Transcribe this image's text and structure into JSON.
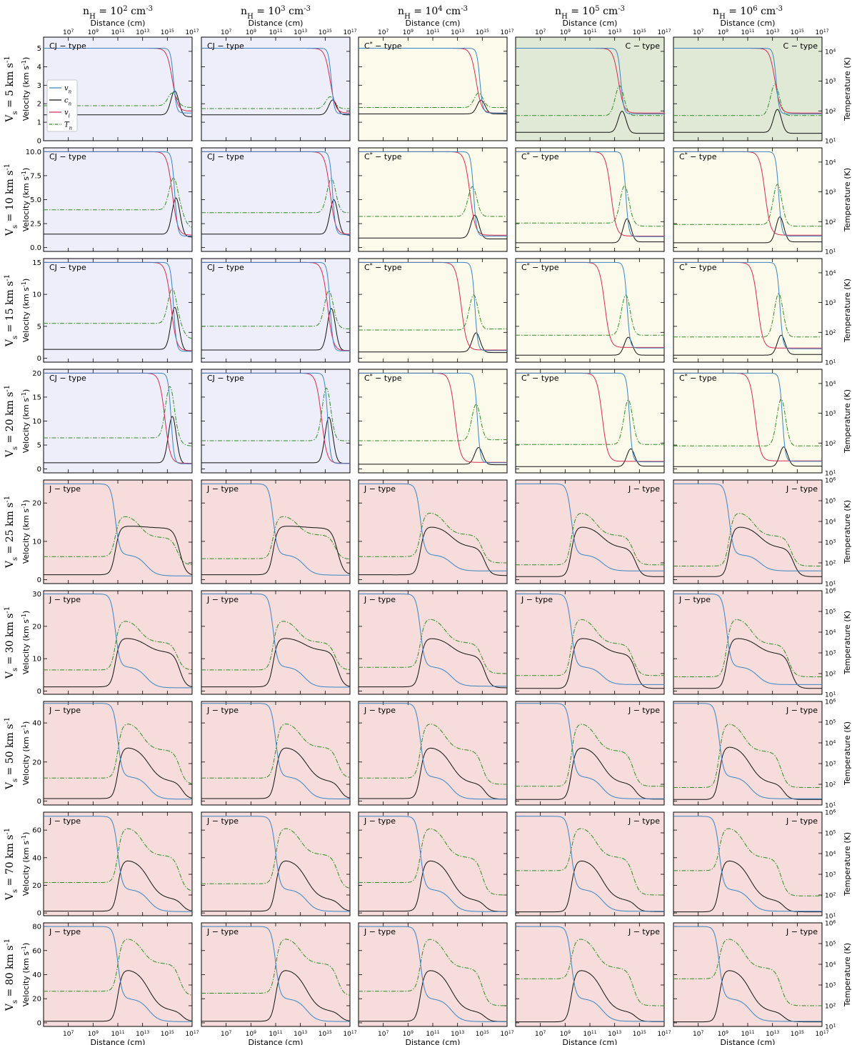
{
  "figure": {
    "column_headers": [
      "n_H = 10^2 cm^-3",
      "n_H = 10^3 cm^-3",
      "n_H = 10^4 cm^-3",
      "n_H = 10^5 cm^-3",
      "n_H = 10^6 cm^-3"
    ],
    "row_labels": [
      "V_s = 5 km s^-1",
      "V_s = 10 km s^-1",
      "V_s = 15 km s^-1",
      "V_s = 20 km s^-1",
      "V_s = 25 km s^-1",
      "V_s = 30 km s^-1",
      "V_s = 50 km s^-1",
      "V_s = 70 km s^-1",
      "V_s = 80 km s^-1"
    ],
    "xlabel": "Distance (cm)",
    "ylabel_left": "Velocity (km s^-1)",
    "ylabel_right": "Temperature (K)",
    "x_tick_labels": [
      "10^7",
      "10^9",
      "10^11",
      "10^13",
      "10^15",
      "10^17"
    ],
    "right_ticks_cshock": [
      "10^1",
      "10^2",
      "10^3",
      "10^4"
    ],
    "right_ticks_jshock": [
      "10^1",
      "10^2",
      "10^3",
      "10^4",
      "10^5",
      "10^6"
    ],
    "legend": [
      {
        "name": "v_n",
        "color": "#3b84c4",
        "dash": "solid"
      },
      {
        "name": "c_n",
        "color": "#111111",
        "dash": "solid"
      },
      {
        "name": "v_i",
        "color": "#d62b50",
        "dash": "solid"
      },
      {
        "name": "T_n",
        "color": "#2e8b22",
        "dash": "dashdot"
      }
    ],
    "background_colors": {
      "CJ": "#eeeefa",
      "C*": "#fcfbeb",
      "C": "#e0e8d6",
      "J": "#f6dcdb"
    },
    "shock_types": [
      [
        "CJ - type",
        "CJ - type",
        "C* - type",
        "C - type",
        "C - type"
      ],
      [
        "CJ - type",
        "CJ - type",
        "C* - type",
        "C* - type",
        "C* - type"
      ],
      [
        "CJ - type",
        "CJ - type",
        "C* - type",
        "C* - type",
        "C* - type"
      ],
      [
        "CJ - type",
        "CJ - type",
        "C* - type",
        "C* - type",
        "C* - type"
      ],
      [
        "J - type",
        "J - type",
        "J - type",
        "J - type",
        "J - type"
      ],
      [
        "J - type",
        "J - type",
        "J - type",
        "J - type",
        "J - type"
      ],
      [
        "J - type",
        "J - type",
        "J - type",
        "J - type",
        "J - type"
      ],
      [
        "J - type",
        "J - type",
        "J - type",
        "J - type",
        "J - type"
      ],
      [
        "J - type",
        "J - type",
        "J - type",
        "J - type",
        "J - type"
      ]
    ],
    "y_tick_labels": [
      [
        "0",
        "1",
        "2",
        "3",
        "4",
        "5"
      ],
      [
        "0.0",
        "2.5",
        "5.0",
        "7.5",
        "10.0"
      ],
      [
        "0",
        "5",
        "10",
        "15"
      ],
      [
        "0",
        "5",
        "10",
        "15",
        "20"
      ],
      [
        "0",
        "10",
        "20"
      ],
      [
        "0",
        "10",
        "20",
        "30"
      ],
      [
        "0",
        "20",
        "40"
      ],
      [
        "0",
        "20",
        "40",
        "60"
      ],
      [
        "0",
        "20",
        "40",
        "60",
        "80"
      ]
    ]
  },
  "chart_data": {
    "type": "line",
    "layout": "grid of 9 rows (shock velocity) by 5 columns (pre-shock density)",
    "xscale": "log",
    "xlim": [
      100000,
      100000000000000000
    ],
    "yscale_right": "log",
    "series_names": [
      "v_n",
      "c_n",
      "v_i",
      "T_n"
    ],
    "rows": [
      {
        "vs": 5,
        "ylim": [
          0,
          5.6
        ],
        "tlim": [
          10,
          30000
        ],
        "cols": [
          {
            "type": "CJ",
            "vshock_x": 15.5,
            "vi_x": 15.4,
            "cn_pre": 1.4,
            "cn_peak": 2.7,
            "cn_post": 1.3,
            "vi_post": 1.6,
            "vn_post": 1.5,
            "t_pre": 150,
            "t_peak": 400,
            "t_post": 130
          },
          {
            "type": "CJ",
            "vshock_x": 15.5,
            "vi_x": 15.4,
            "cn_pre": 1.4,
            "cn_peak": 2.2,
            "cn_post": 1.4,
            "vi_post": 1.5,
            "vn_post": 1.45,
            "t_pre": 120,
            "t_peak": 300,
            "t_post": 120
          },
          {
            "type": "C*",
            "vshock_x": 14.8,
            "vi_x": 14.5,
            "cn_pre": 1.45,
            "cn_peak": 2.2,
            "cn_post": 1.45,
            "vi_post": 1.5,
            "vn_post": 1.5,
            "t_pre": 130,
            "t_peak": 400,
            "t_post": 130
          },
          {
            "type": "C",
            "vshock_x": 13.5,
            "vi_x": 13.3,
            "cn_pre": 0.45,
            "cn_peak": 1.6,
            "cn_post": 0.4,
            "vi_post": 1.5,
            "vn_post": 1.45,
            "t_pre": 70,
            "t_peak": 700,
            "t_post": 70
          },
          {
            "type": "C",
            "vshock_x": 13.3,
            "vi_x": 13.2,
            "cn_pre": 0.45,
            "cn_peak": 1.7,
            "cn_post": 0.4,
            "vi_post": 1.5,
            "vn_post": 1.45,
            "t_pre": 70,
            "t_peak": 800,
            "t_post": 70
          }
        ]
      },
      {
        "vs": 10,
        "ylim": [
          -0.4,
          10.4
        ],
        "tlim": [
          10,
          30000
        ],
        "cols": [
          {
            "type": "CJ",
            "vshock_x": 15.6,
            "vi_x": 15.4,
            "cn_pre": 1.4,
            "cn_peak": 5.2,
            "cn_post": 1.1,
            "vi_post": 1.3,
            "vn_post": 1.2,
            "t_pre": 250,
            "t_peak": 3000,
            "t_post": 60
          },
          {
            "type": "CJ",
            "vshock_x": 15.6,
            "vi_x": 15.4,
            "cn_pre": 1.4,
            "cn_peak": 5.0,
            "cn_post": 1.3,
            "vi_post": 1.4,
            "vn_post": 1.35,
            "t_pre": 200,
            "t_peak": 2800,
            "t_post": 200
          },
          {
            "type": "C*",
            "vshock_x": 14.3,
            "vi_x": 14.0,
            "cn_pre": 1.0,
            "cn_peak": 3.4,
            "cn_post": 0.9,
            "vi_post": 1.3,
            "vn_post": 1.2,
            "t_pre": 150,
            "t_peak": 1500,
            "t_post": 150
          },
          {
            "type": "C*",
            "vshock_x": 13.9,
            "vi_x": 12.7,
            "cn_pre": 0.5,
            "cn_peak": 3.0,
            "cn_post": 0.6,
            "vi_post": 1.2,
            "vn_post": 1.15,
            "t_pre": 90,
            "t_peak": 1600,
            "t_post": 70
          },
          {
            "type": "C*",
            "vshock_x": 13.5,
            "vi_x": 12.4,
            "cn_pre": 0.5,
            "cn_peak": 3.2,
            "cn_post": 0.6,
            "vi_post": 1.3,
            "vn_post": 1.2,
            "t_pre": 80,
            "t_peak": 1800,
            "t_post": 70
          }
        ]
      },
      {
        "vs": 15,
        "ylim": [
          -0.6,
          15.6
        ],
        "tlim": [
          10,
          30000
        ],
        "cols": [
          {
            "type": "CJ",
            "vshock_x": 15.5,
            "vi_x": 15.3,
            "cn_pre": 1.4,
            "cn_peak": 8.0,
            "cn_post": 1.1,
            "vi_post": 1.2,
            "vn_post": 1.1,
            "t_pre": 200,
            "t_peak": 3000,
            "t_post": 60
          },
          {
            "type": "CJ",
            "vshock_x": 15.4,
            "vi_x": 15.2,
            "cn_pre": 1.3,
            "cn_peak": 7.8,
            "cn_post": 1.2,
            "vi_post": 1.2,
            "vn_post": 1.15,
            "t_pre": 160,
            "t_peak": 2500,
            "t_post": 130
          },
          {
            "type": "C*",
            "vshock_x": 14.4,
            "vi_x": 13.3,
            "cn_pre": 1.0,
            "cn_peak": 4.0,
            "cn_post": 0.9,
            "vi_post": 1.3,
            "vn_post": 1.2,
            "t_pre": 120,
            "t_peak": 1800,
            "t_post": 130
          },
          {
            "type": "C*",
            "vshock_x": 14.0,
            "vi_x": 12.2,
            "cn_pre": 0.5,
            "cn_peak": 3.3,
            "cn_post": 0.5,
            "vi_post": 1.7,
            "vn_post": 1.6,
            "t_pre": 80,
            "t_peak": 1800,
            "t_post": 80
          },
          {
            "type": "C*",
            "vshock_x": 13.6,
            "vi_x": 11.8,
            "cn_pre": 0.5,
            "cn_peak": 3.6,
            "cn_post": 0.6,
            "vi_post": 1.6,
            "vn_post": 1.5,
            "t_pre": 70,
            "t_peak": 2000,
            "t_post": 70
          }
        ]
      },
      {
        "vs": 20,
        "ylim": [
          -0.8,
          20.8
        ],
        "tlim": [
          10,
          30000
        ],
        "cols": [
          {
            "type": "CJ",
            "vshock_x": 15.3,
            "vi_x": 14.8,
            "cn_pre": 1.3,
            "cn_peak": 11.0,
            "cn_post": 1.1,
            "vi_post": 1.2,
            "vn_post": 1.1,
            "t_pre": 150,
            "t_peak": 8000,
            "t_post": 80
          },
          {
            "type": "CJ",
            "vshock_x": 15.2,
            "vi_x": 14.7,
            "cn_pre": 1.3,
            "cn_peak": 10.8,
            "cn_post": 1.2,
            "vi_post": 1.2,
            "vn_post": 1.15,
            "t_pre": 120,
            "t_peak": 7000,
            "t_post": 120
          },
          {
            "type": "C*",
            "vshock_x": 14.6,
            "vi_x": 12.8,
            "cn_pre": 1.0,
            "cn_peak": 4.5,
            "cn_post": 0.9,
            "vi_post": 1.4,
            "vn_post": 1.3,
            "t_pre": 120,
            "t_peak": 2000,
            "t_post": 130
          },
          {
            "type": "C*",
            "vshock_x": 14.2,
            "vi_x": 12.0,
            "cn_pre": 0.5,
            "cn_peak": 4.2,
            "cn_post": 0.6,
            "vi_post": 1.6,
            "vn_post": 1.5,
            "t_pre": 90,
            "t_peak": 2800,
            "t_post": 90
          },
          {
            "type": "C*",
            "vshock_x": 13.8,
            "vi_x": 11.6,
            "cn_pre": 0.5,
            "cn_peak": 4.6,
            "cn_post": 0.6,
            "vi_post": 1.7,
            "vn_post": 1.6,
            "t_pre": 80,
            "t_peak": 3000,
            "t_post": 80
          }
        ]
      },
      {
        "vs": 25,
        "ylim": [
          -1,
          26
        ],
        "tlim": [
          10,
          1000000
        ],
        "cols": [
          {
            "type": "J",
            "vshock_x": 10.8,
            "cn_pre": 1.3,
            "cn_peak": 14.0,
            "cn_mid": 13.5,
            "cn_post": 1.1,
            "vn_jump": 6.5,
            "vn_post": 1.0,
            "t_pre": 200,
            "t_peak": 20000,
            "t_post": 80
          },
          {
            "type": "J",
            "vshock_x": 10.8,
            "cn_pre": 1.3,
            "cn_peak": 14.0,
            "cn_mid": 13.5,
            "cn_post": 1.3,
            "vn_jump": 6.5,
            "vn_post": 1.2,
            "t_pre": 160,
            "t_peak": 20000,
            "t_post": 150
          },
          {
            "type": "J",
            "vshock_x": 10.0,
            "cn_pre": 1.3,
            "cn_peak": 14.0,
            "cn_mid": 8.5,
            "cn_post": 1.1,
            "vn_jump": 6.5,
            "vn_post": 2.3,
            "t_pre": 200,
            "t_peak": 30000,
            "t_post": 100
          },
          {
            "type": "J",
            "vshock_x": 9.5,
            "cn_pre": 0.8,
            "cn_peak": 14.0,
            "cn_mid": 8.3,
            "cn_post": 0.8,
            "vn_jump": 6.5,
            "vn_post": 2.3,
            "t_pre": 80,
            "t_peak": 30000,
            "t_post": 80
          },
          {
            "type": "J",
            "vshock_x": 9.5,
            "cn_pre": 0.8,
            "cn_peak": 14.0,
            "cn_mid": 8.3,
            "cn_post": 0.8,
            "vn_jump": 6.5,
            "vn_post": 2.3,
            "t_pre": 70,
            "t_peak": 30000,
            "t_post": 70
          }
        ]
      },
      {
        "vs": 30,
        "ylim": [
          -1,
          31
        ],
        "tlim": [
          10,
          1000000
        ],
        "cols": [
          {
            "type": "J",
            "vshock_x": 10.8,
            "cn_pre": 1.3,
            "cn_peak": 16.5,
            "cn_mid": 12.0,
            "cn_post": 1.1,
            "vn_jump": 7.5,
            "vn_post": 1.0,
            "t_pre": 150,
            "t_peak": 40000,
            "t_post": 150
          },
          {
            "type": "J",
            "vshock_x": 10.8,
            "cn_pre": 1.3,
            "cn_peak": 16.5,
            "cn_mid": 12.5,
            "cn_post": 1.2,
            "vn_jump": 7.5,
            "vn_post": 1.2,
            "t_pre": 150,
            "t_peak": 40000,
            "t_post": 150
          },
          {
            "type": "J",
            "vshock_x": 10.0,
            "cn_pre": 1.3,
            "cn_peak": 16.5,
            "cn_mid": 11.0,
            "cn_post": 1.0,
            "vn_jump": 7.5,
            "vn_post": 1.5,
            "t_pre": 200,
            "t_peak": 50000,
            "t_post": 100
          },
          {
            "type": "J",
            "vshock_x": 9.5,
            "cn_pre": 0.8,
            "cn_peak": 16.5,
            "cn_mid": 11.5,
            "cn_post": 0.8,
            "vn_jump": 7.5,
            "vn_post": 2.0,
            "t_pre": 80,
            "t_peak": 50000,
            "t_post": 80
          },
          {
            "type": "J",
            "vshock_x": 9.3,
            "cn_pre": 0.8,
            "cn_peak": 16.5,
            "cn_mid": 11.5,
            "cn_post": 0.8,
            "vn_jump": 7.5,
            "vn_post": 2.0,
            "t_pre": 70,
            "t_peak": 50000,
            "t_post": 70
          }
        ]
      },
      {
        "vs": 50,
        "ylim": [
          -2,
          51
        ],
        "tlim": [
          10,
          1000000
        ],
        "cols": [
          {
            "type": "J",
            "vshock_x": 11.0,
            "cn_pre": 1.3,
            "cn_peak": 28.0,
            "cn_mid": 10.0,
            "cn_post": 1.1,
            "vn_jump": 12.5,
            "vn_post": 1.0,
            "t_pre": 200,
            "t_peak": 100000,
            "t_post": 100
          },
          {
            "type": "J",
            "vshock_x": 11.0,
            "cn_pre": 1.3,
            "cn_peak": 28.0,
            "cn_mid": 10.0,
            "cn_post": 1.2,
            "vn_jump": 12.5,
            "vn_post": 1.1,
            "t_pre": 200,
            "t_peak": 100000,
            "t_post": 200
          },
          {
            "type": "J",
            "vshock_x": 10.0,
            "cn_pre": 1.3,
            "cn_peak": 28.0,
            "cn_mid": 9.0,
            "cn_post": 1.0,
            "vn_jump": 12.5,
            "vn_post": 1.0,
            "t_pre": 200,
            "t_peak": 100000,
            "t_post": 100
          },
          {
            "type": "J",
            "vshock_x": 9.5,
            "cn_pre": 0.8,
            "cn_peak": 28.0,
            "cn_mid": 9.0,
            "cn_post": 1.0,
            "vn_jump": 12.5,
            "vn_post": 1.2,
            "t_pre": 80,
            "t_peak": 100000,
            "t_post": 80
          },
          {
            "type": "J",
            "vshock_x": 8.7,
            "cn_pre": 0.8,
            "cn_peak": 28.5,
            "cn_mid": 9.0,
            "cn_post": 0.8,
            "vn_jump": 12.5,
            "vn_post": 1.2,
            "t_pre": 70,
            "t_peak": 100000,
            "t_post": 70
          }
        ]
      },
      {
        "vs": 70,
        "ylim": [
          -2,
          73
        ],
        "tlim": [
          10,
          1000000
        ],
        "cols": [
          {
            "type": "J",
            "vshock_x": 11.0,
            "cn_pre": 1.3,
            "cn_peak": 39.0,
            "cn_mid": 10.0,
            "cn_post": 1.1,
            "vn_jump": 17.0,
            "vn_post": 1.0,
            "t_pre": 400,
            "t_peak": 200000,
            "t_post": 150
          },
          {
            "type": "J",
            "vshock_x": 11.0,
            "cn_pre": 1.3,
            "cn_peak": 39.0,
            "cn_mid": 9.5,
            "cn_post": 1.2,
            "vn_jump": 17.0,
            "vn_post": 1.1,
            "t_pre": 350,
            "t_peak": 200000,
            "t_post": 200
          },
          {
            "type": "J",
            "vshock_x": 10.0,
            "cn_pre": 1.3,
            "cn_peak": 39.0,
            "cn_mid": 9.0,
            "cn_post": 1.0,
            "vn_jump": 17.0,
            "vn_post": 1.0,
            "t_pre": 400,
            "t_peak": 200000,
            "t_post": 100
          },
          {
            "type": "J",
            "vshock_x": 9.5,
            "cn_pre": 0.8,
            "cn_peak": 39.0,
            "cn_mid": 9.0,
            "cn_post": 1.0,
            "vn_jump": 17.0,
            "vn_post": 1.2,
            "t_pre": 1500,
            "t_peak": 200000,
            "t_post": 100
          },
          {
            "type": "J",
            "vshock_x": 8.7,
            "cn_pre": 0.8,
            "cn_peak": 39.0,
            "cn_mid": 9.0,
            "cn_post": 0.8,
            "vn_jump": 17.0,
            "vn_post": 1.2,
            "t_pre": 1500,
            "t_peak": 200000,
            "t_post": 90
          }
        ]
      },
      {
        "vs": 80,
        "ylim": [
          -3,
          83
        ],
        "tlim": [
          10,
          1000000
        ],
        "cols": [
          {
            "type": "J",
            "vshock_x": 11.0,
            "cn_pre": 1.3,
            "cn_peak": 45.0,
            "cn_mid": 10.0,
            "cn_post": 1.1,
            "vn_jump": 20.0,
            "vn_post": 1.0,
            "t_pre": 500,
            "t_peak": 200000,
            "t_post": 300
          },
          {
            "type": "J",
            "vshock_x": 11.0,
            "cn_pre": 1.3,
            "cn_peak": 45.0,
            "cn_mid": 9.5,
            "cn_post": 1.2,
            "vn_jump": 20.0,
            "vn_post": 1.1,
            "t_pre": 400,
            "t_peak": 200000,
            "t_post": 300
          },
          {
            "type": "J",
            "vshock_x": 10.0,
            "cn_pre": 1.3,
            "cn_peak": 45.0,
            "cn_mid": 9.0,
            "cn_post": 1.0,
            "vn_jump": 20.0,
            "vn_post": 1.0,
            "t_pre": 500,
            "t_peak": 200000,
            "t_post": 100
          },
          {
            "type": "J",
            "vshock_x": 9.5,
            "cn_pre": 0.8,
            "cn_peak": 45.0,
            "cn_mid": 9.0,
            "cn_post": 1.0,
            "vn_jump": 20.0,
            "vn_post": 1.2,
            "t_pre": 2000,
            "t_peak": 200000,
            "t_post": 100
          },
          {
            "type": "J",
            "vshock_x": 8.7,
            "cn_pre": 0.8,
            "cn_peak": 45.0,
            "cn_mid": 9.0,
            "cn_post": 0.8,
            "vn_jump": 20.0,
            "vn_post": 1.2,
            "t_pre": 2000,
            "t_peak": 200000,
            "t_post": 100
          }
        ]
      }
    ]
  }
}
